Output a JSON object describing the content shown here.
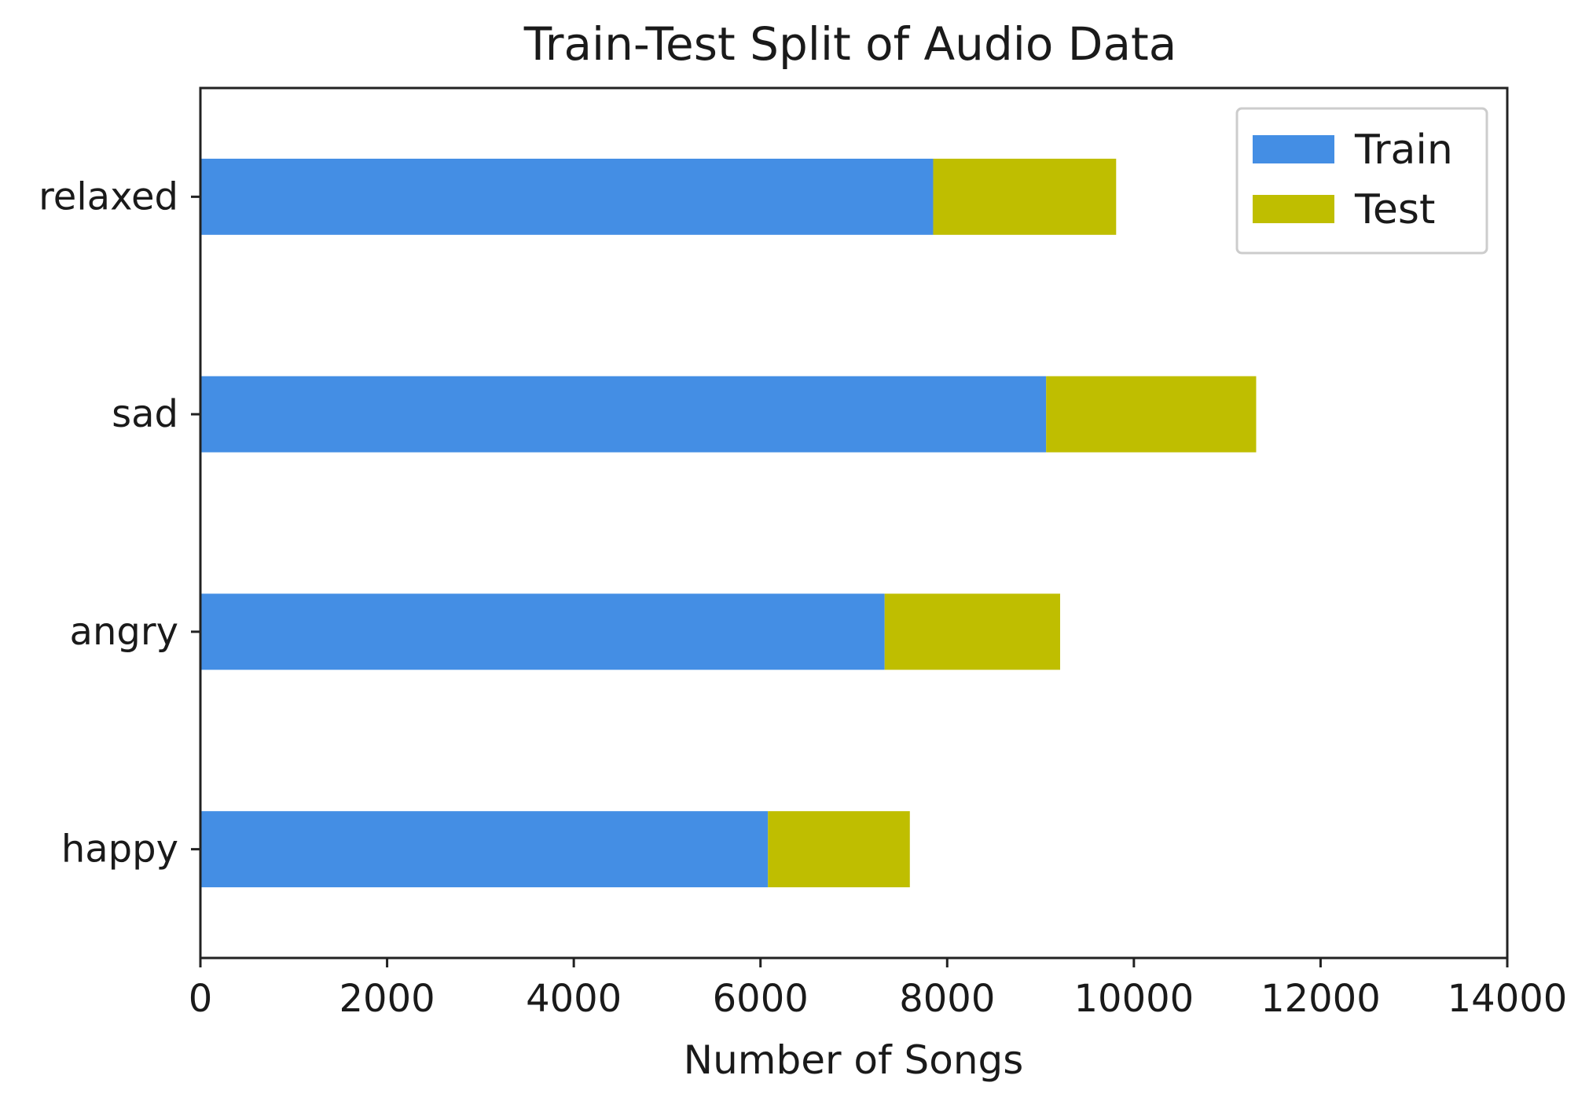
{
  "chart_data": {
    "type": "bar",
    "orientation": "horizontal",
    "stacked": true,
    "title": "Train-Test Split of Audio Data",
    "xlabel": "Number of Songs",
    "ylabel": "",
    "xlim": [
      0,
      14000
    ],
    "xticks": [
      "0",
      "2000",
      "4000",
      "6000",
      "8000",
      "10000",
      "12000",
      "14000"
    ],
    "categories": [
      "happy",
      "angry",
      "sad",
      "relaxed"
    ],
    "series": [
      {
        "name": "Train",
        "color": "#448ee4",
        "values": [
          6080,
          7330,
          9060,
          7850
        ]
      },
      {
        "name": "Test",
        "color": "#bfbe00",
        "values": [
          1520,
          1880,
          2250,
          1960
        ]
      }
    ],
    "legend_position": "top-right",
    "grid": false
  }
}
